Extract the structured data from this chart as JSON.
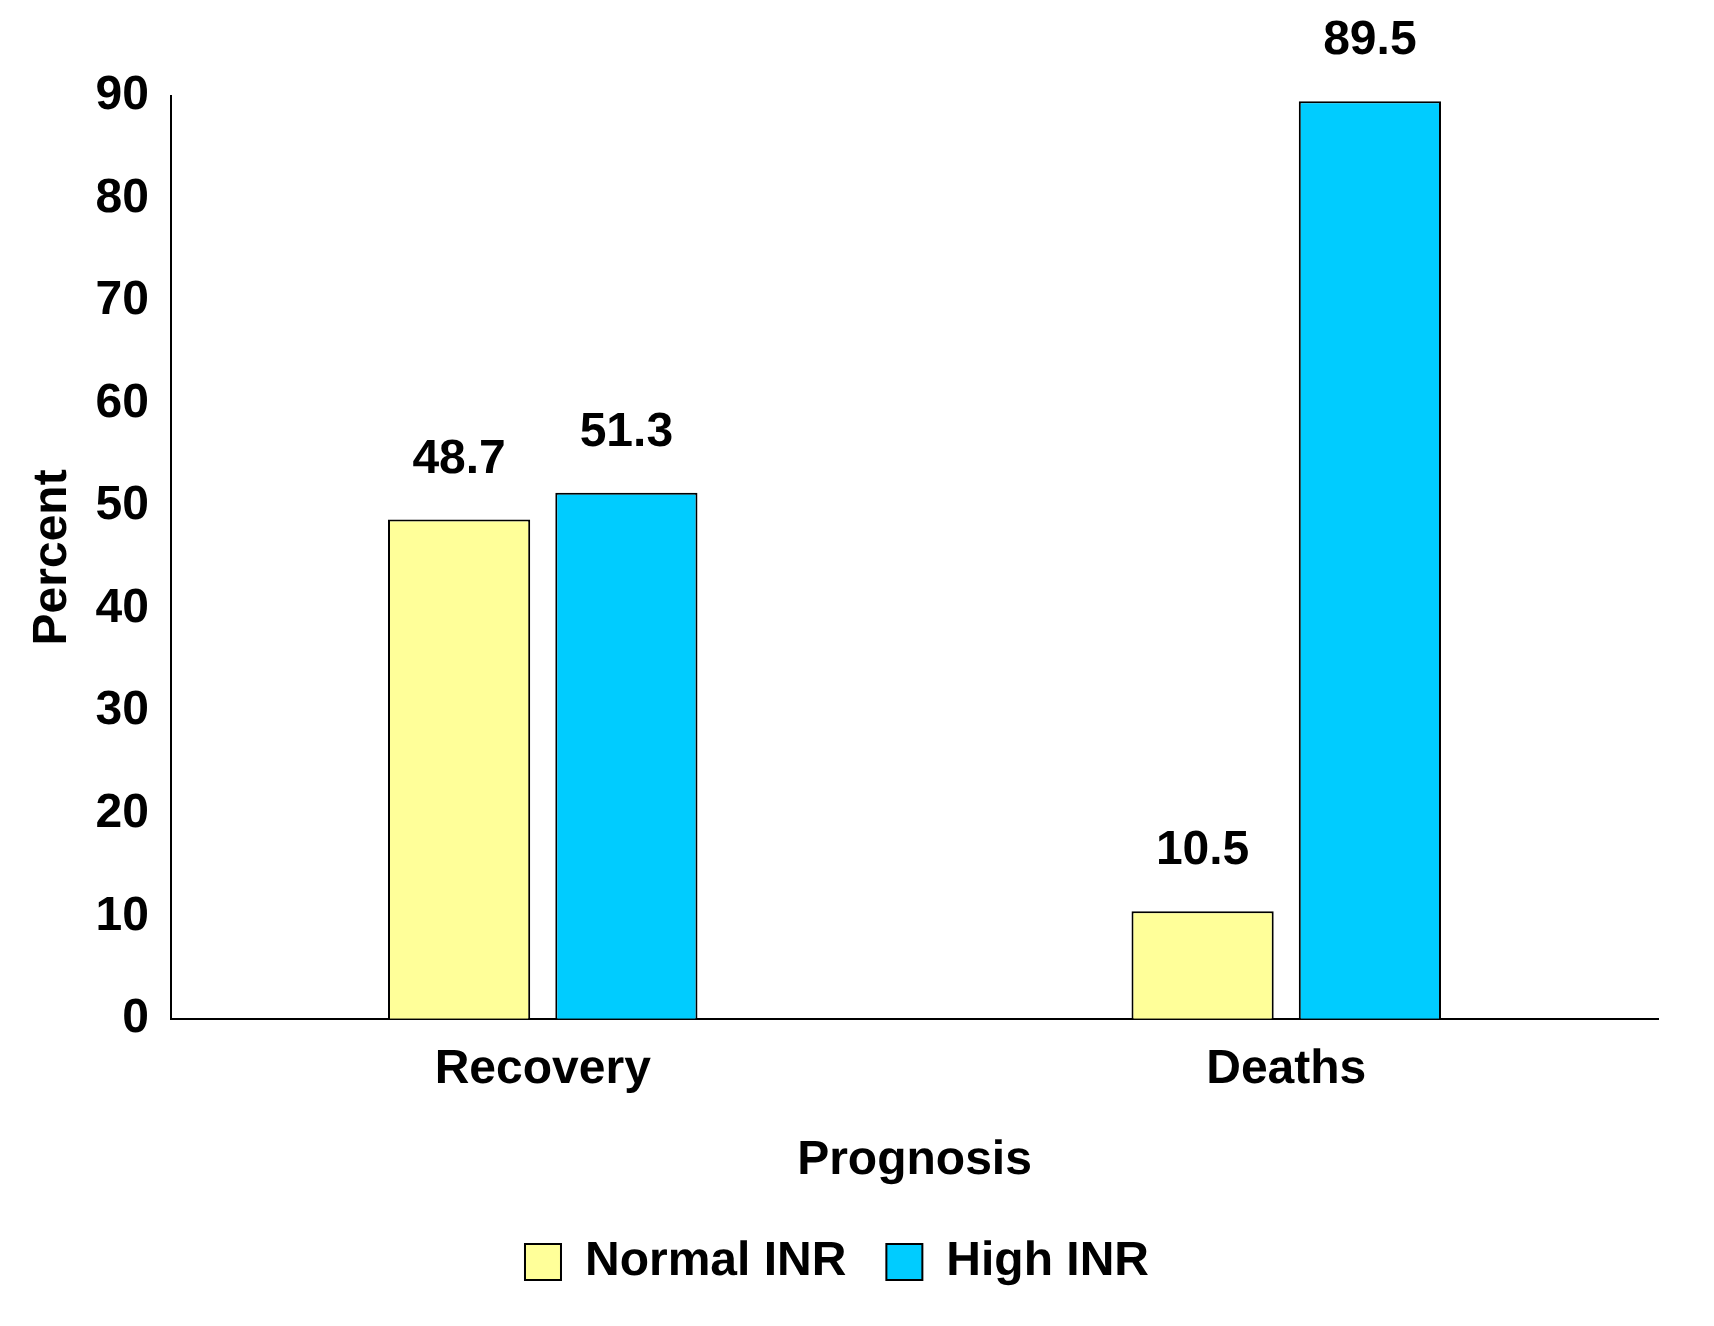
{
  "chart_data": {
    "type": "bar",
    "xlabel": "Prognosis",
    "ylabel": "Percent",
    "categories": [
      "Recovery",
      "Deaths"
    ],
    "series": [
      {
        "name": "Normal INR",
        "color": "#ffff99",
        "values": [
          48.7,
          10.5
        ]
      },
      {
        "name": "High INR",
        "color": "#00ccff",
        "values": [
          51.3,
          89.5
        ]
      }
    ],
    "ylim": [
      0,
      90
    ],
    "yticks": [
      0,
      10,
      20,
      30,
      40,
      50,
      60,
      70,
      80,
      90
    ],
    "grid": false,
    "legend": "bottom",
    "data_labels": true
  }
}
